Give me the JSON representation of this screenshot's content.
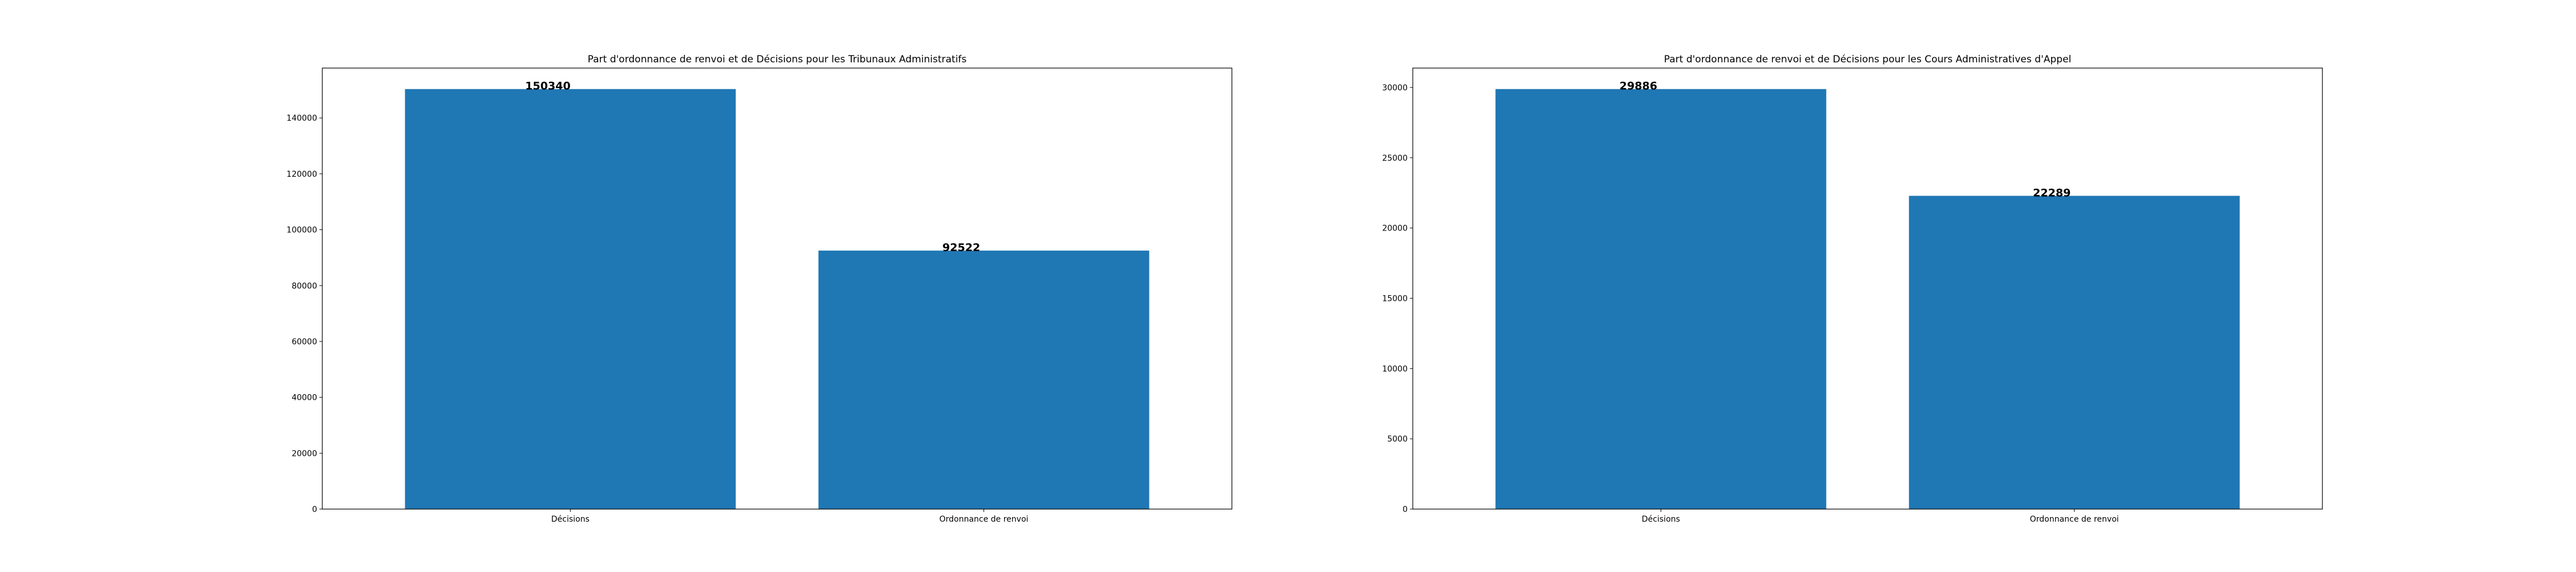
{
  "chart_data": [
    {
      "type": "bar",
      "title": "Part d'ordonnance de renvoi et de Décisions pour les Tribunaux Administratifs",
      "xlabel": "",
      "ylabel": "",
      "categories": [
        "Décisions",
        "Ordonnance de renvoi"
      ],
      "values": [
        150340,
        92522
      ],
      "ylim": [
        0,
        157857
      ],
      "yticks": [
        0,
        20000,
        40000,
        60000,
        80000,
        100000,
        120000,
        140000
      ],
      "bar_color": "#1f77b4",
      "grid": false
    },
    {
      "type": "bar",
      "title": "Part d'ordonnance de renvoi et de Décisions pour les Cours Administratives d'Appel",
      "xlabel": "",
      "ylabel": "",
      "categories": [
        "Décisions",
        "Ordonnance de renvoi"
      ],
      "values": [
        29886,
        22289
      ],
      "ylim": [
        0,
        31380
      ],
      "yticks": [
        0,
        5000,
        10000,
        15000,
        20000,
        25000,
        30000
      ],
      "bar_color": "#1f77b4",
      "grid": false
    }
  ]
}
